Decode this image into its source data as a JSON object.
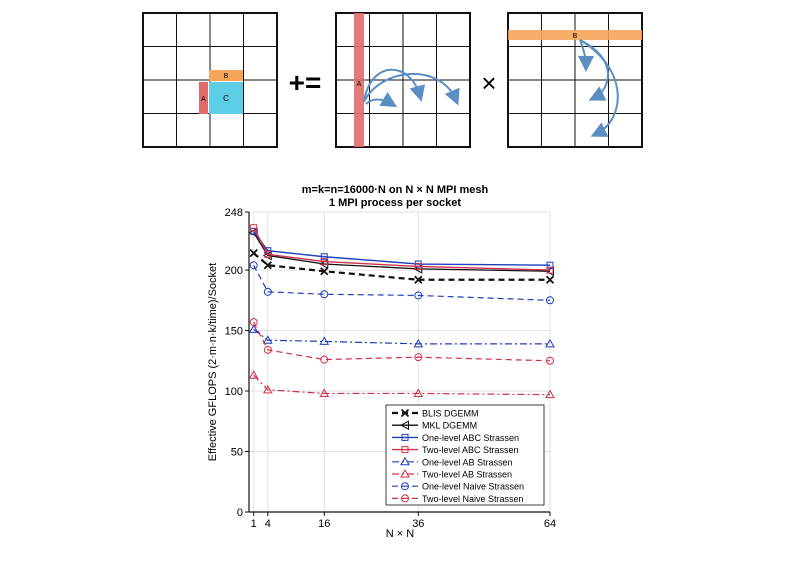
{
  "diagram": {
    "op_plus_equals": "+=",
    "op_times": "×",
    "left_block_a": "A",
    "left_block_b": "B",
    "left_block_c": "C",
    "mid_block_a": "A",
    "right_block_b": "B",
    "colors": {
      "a": "#e06b6b",
      "b": "#f5a55a",
      "c": "#5ccfe6",
      "arrow": "#5a8fc4",
      "grid": "#111111"
    }
  },
  "chart_data": {
    "type": "line",
    "title": "m=k=n=16000·N on N × N MPI mesh",
    "subtitle": "1 MPI process per socket",
    "xlabel": "N × N",
    "ylabel": "Effective GFLOPS (2·m·n·k/time)/Socket",
    "x": [
      1,
      4,
      16,
      36,
      64
    ],
    "xticks": [
      "1",
      "4",
      "16",
      "36",
      "64"
    ],
    "yticks": [
      "0",
      "50",
      "100",
      "150",
      "200",
      "248"
    ],
    "ylim": [
      0,
      248
    ],
    "legend_position": "lower-right",
    "series": [
      {
        "name": "BLIS DGEMM",
        "values": [
          214,
          204,
          199,
          192,
          192
        ],
        "color": "#111111",
        "dash": "6,4",
        "marker": "x",
        "width": 2.2
      },
      {
        "name": "MKL DGEMM",
        "values": [
          231,
          212,
          205,
          201,
          199
        ],
        "color": "#111111",
        "dash": "",
        "marker": "tri-left",
        "width": 1.3
      },
      {
        "name": "One-level ABC Strassen",
        "values": [
          232,
          216,
          211,
          205,
          204
        ],
        "color": "#1f3fbf",
        "dash": "",
        "marker": "square",
        "width": 1.4
      },
      {
        "name": "Two-level ABC Strassen",
        "values": [
          235,
          213,
          207,
          203,
          200
        ],
        "color": "#d0314a",
        "dash": "",
        "marker": "square",
        "width": 1.4
      },
      {
        "name": "One-level AB Strassen",
        "values": [
          151,
          142,
          141,
          139,
          139
        ],
        "color": "#1f3fbf",
        "dash": "7,3,2,3",
        "marker": "triangle",
        "width": 1.2
      },
      {
        "name": "Two-level AB Strassen",
        "values": [
          113,
          101,
          98,
          98,
          97
        ],
        "color": "#d0314a",
        "dash": "7,3,2,3",
        "marker": "triangle",
        "width": 1.2
      },
      {
        "name": "One-level Naive Strassen",
        "values": [
          204,
          182,
          180,
          179,
          175
        ],
        "color": "#1f3fbf",
        "dash": "6,4",
        "marker": "circle",
        "width": 1.2
      },
      {
        "name": "Two-level Naive Strassen",
        "values": [
          157,
          134,
          126,
          128,
          125
        ],
        "color": "#d0314a",
        "dash": "6,4",
        "marker": "circle",
        "width": 1.2
      }
    ]
  }
}
